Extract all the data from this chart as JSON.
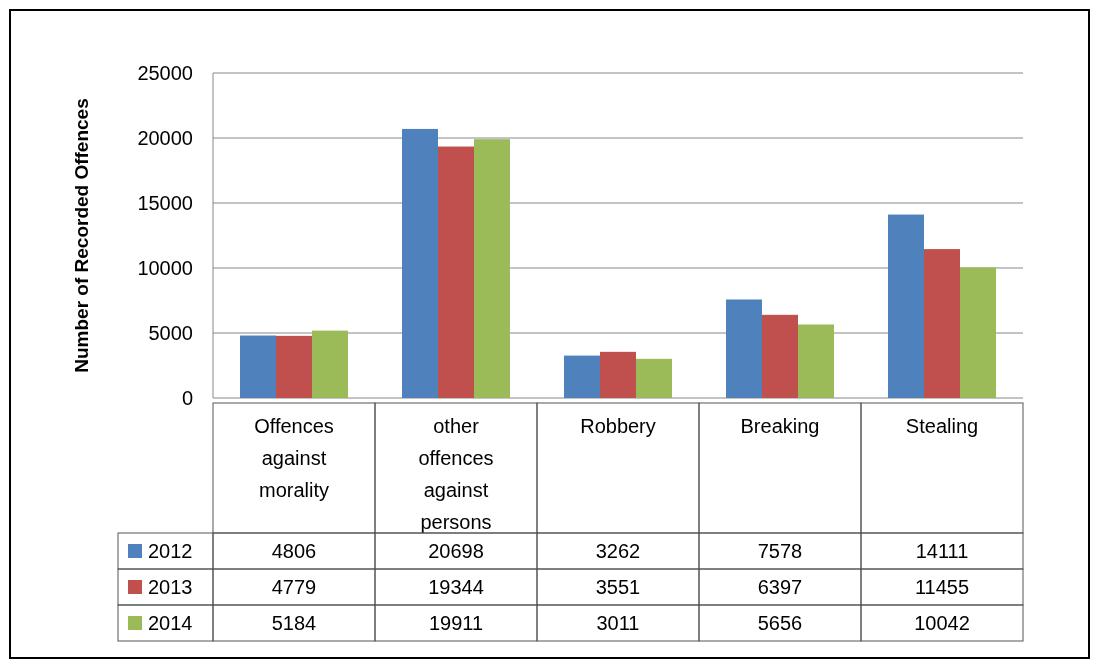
{
  "chart_data": {
    "type": "bar",
    "ylabel": "Number of Recorded Offences",
    "categories": [
      "Offences against morality",
      "other offences against persons",
      "Robbery",
      "Breaking",
      "Stealing"
    ],
    "series": [
      {
        "name": "2012",
        "color": "#4f81bd",
        "values": [
          4806,
          20698,
          3262,
          7578,
          14111
        ]
      },
      {
        "name": "2013",
        "color": "#c0504d",
        "values": [
          4779,
          19344,
          3551,
          6397,
          11455
        ]
      },
      {
        "name": "2014",
        "color": "#9bbb59",
        "values": [
          5184,
          19911,
          3011,
          5656,
          10042
        ]
      }
    ],
    "ylim": [
      0,
      25000
    ],
    "yticks": [
      0,
      5000,
      10000,
      15000,
      20000,
      25000
    ],
    "grid": "y",
    "legend": "bottom",
    "data_labels": true
  }
}
